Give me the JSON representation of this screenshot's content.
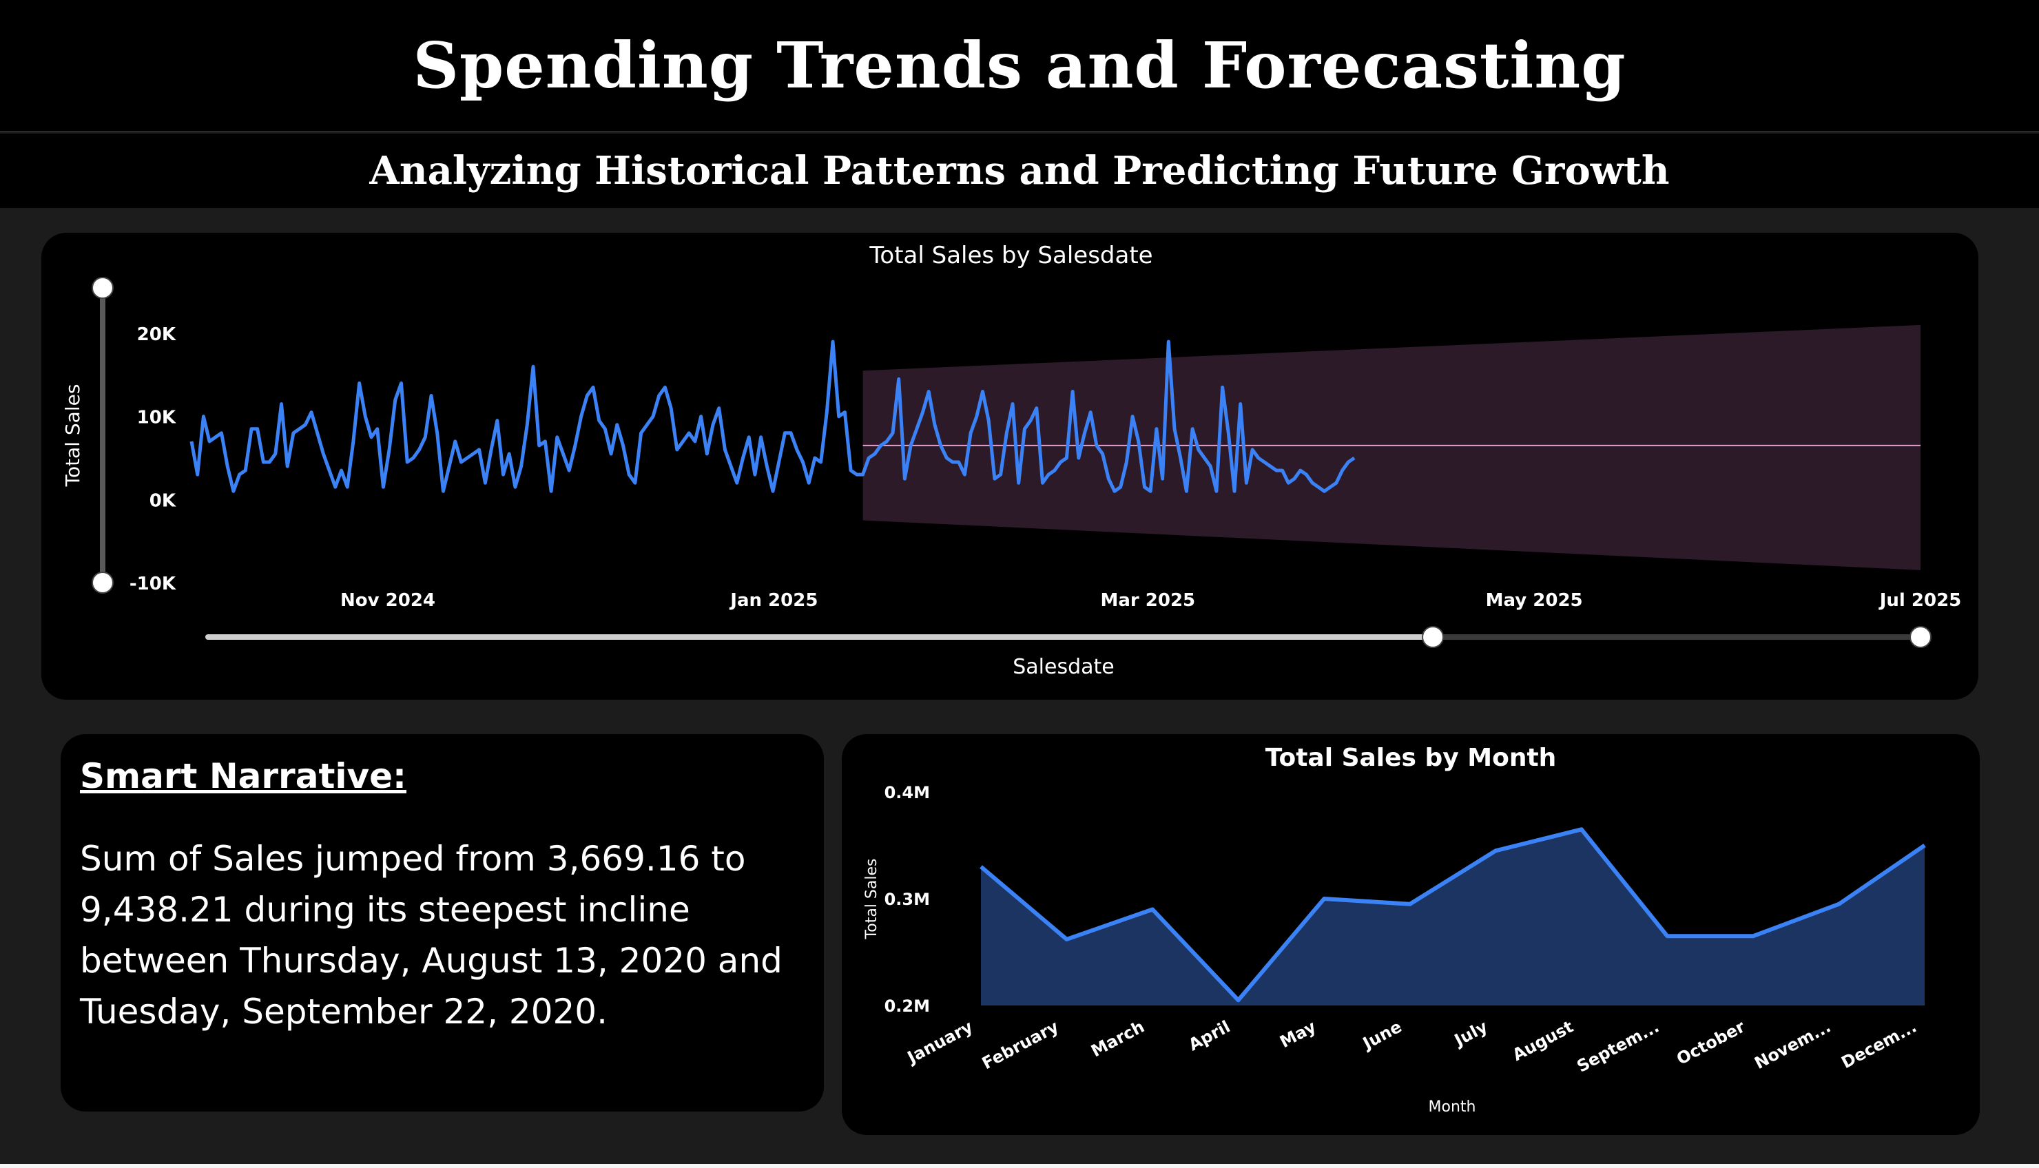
{
  "header": {
    "title": "Spending Trends and Forecasting",
    "subtitle": "Analyzing Historical Patterns and Predicting Future Growth"
  },
  "colors": {
    "line": "#3b82f6",
    "forecast_band": "#2c1a29",
    "forecast_line": "#e5a0d0",
    "area_fill": "#1c3461",
    "slider_track": "#cfcfcf",
    "slider_rail": "#3a3a3a"
  },
  "narrative": {
    "title": "Smart Narrative:",
    "text": "Sum of Sales jumped from 3,669.16 to 9,438.21 during its steepest incline between Thursday, August 13, 2020 and Tuesday, September 22, 2020."
  },
  "chart_data": [
    {
      "type": "line",
      "title": "Total Sales by Salesdate",
      "xlabel": "Salesdate",
      "ylabel": "Total Sales",
      "x_ticks": [
        "Nov 2024",
        "Jan 2025",
        "Mar 2025",
        "May 2025",
        "Jul 2025"
      ],
      "y_ticks": [
        "20K",
        "10K",
        "0K",
        "-10K"
      ],
      "ylim": [
        -10000,
        20000
      ],
      "xlim": [
        "2024-10-01",
        "2025-07-01"
      ],
      "grid": false,
      "series": [
        {
          "values": [
            7000,
            3000,
            10000,
            7000,
            7500,
            8000,
            4000,
            1000,
            3000,
            3500,
            8500,
            8500,
            4500,
            4500,
            5500,
            11500,
            4000,
            8000,
            8500,
            9000,
            10500,
            8000,
            5500,
            3500,
            1500,
            3500,
            1500,
            7000,
            14000,
            10000,
            7500,
            8500,
            1500,
            6000,
            12000,
            14000,
            4500,
            5000,
            6000,
            7500,
            12500,
            8000,
            1000,
            4000,
            7000,
            4500,
            5000,
            5500,
            6000,
            2000,
            6000,
            9500,
            3000,
            5500,
            1500,
            4000,
            9000,
            16000,
            6500,
            7000,
            1000,
            7500,
            5500,
            3500,
            6500,
            10000,
            12500,
            13500,
            9500,
            8500,
            5500,
            9000,
            6500,
            3000,
            2000,
            8000,
            9000,
            10000,
            12500,
            13500,
            11000,
            6000,
            7000,
            8000,
            7000,
            10000,
            5500,
            9000,
            11000,
            6000,
            4000,
            2000,
            5000,
            7500,
            3000,
            7500,
            4000,
            1000,
            4500,
            8000,
            8000,
            6000,
            4500,
            2000,
            5000,
            4500,
            10500,
            19000,
            10000,
            10500,
            3500,
            3000,
            3000,
            5000,
            5500,
            6500,
            7000,
            8000,
            14500,
            2500,
            6500,
            8500,
            10500,
            13000,
            9000,
            6500,
            5000,
            4500,
            4500,
            3000,
            8000,
            10000,
            13000,
            9500,
            2500,
            3000,
            8000,
            11500,
            2000,
            8500,
            9500,
            11000,
            2000,
            3000,
            3500,
            4500,
            5000,
            13000,
            5000,
            8000,
            10500,
            6500,
            5500,
            2500,
            1000,
            1500,
            4500,
            10000,
            7000,
            1500,
            1000,
            8500,
            2500,
            19000,
            8500,
            5000,
            1000,
            8500,
            6000,
            5000,
            4000,
            1000,
            13500,
            8000,
            1000,
            11500,
            2000,
            6000,
            5000,
            4500,
            4000,
            3500,
            3500,
            2000,
            2500,
            3500,
            3000,
            2000,
            1500,
            1000,
            1500,
            2000,
            3500,
            4500,
            5000
          ]
        }
      ],
      "forecast": {
        "start": "2025-01-15",
        "end": "2025-07-01",
        "value": 6500,
        "upper_start": 15500,
        "upper_end": 21000,
        "lower_start": -2500,
        "lower_end": -8500
      },
      "range_slider_end": "2025-04-15"
    },
    {
      "type": "area",
      "title": "Total Sales by Month",
      "xlabel": "Month",
      "ylabel": "Total Sales",
      "categories": [
        "January",
        "February",
        "March",
        "April",
        "May",
        "June",
        "July",
        "August",
        "Septem...",
        "October",
        "Novem...",
        "Decem..."
      ],
      "values": [
        330000,
        262000,
        290000,
        205000,
        300000,
        295000,
        345000,
        365000,
        265000,
        265000,
        295000,
        350000
      ],
      "y_ticks": [
        "0.4M",
        "0.3M",
        "0.2M"
      ],
      "ylim": [
        200000,
        400000
      ],
      "grid": false
    }
  ]
}
